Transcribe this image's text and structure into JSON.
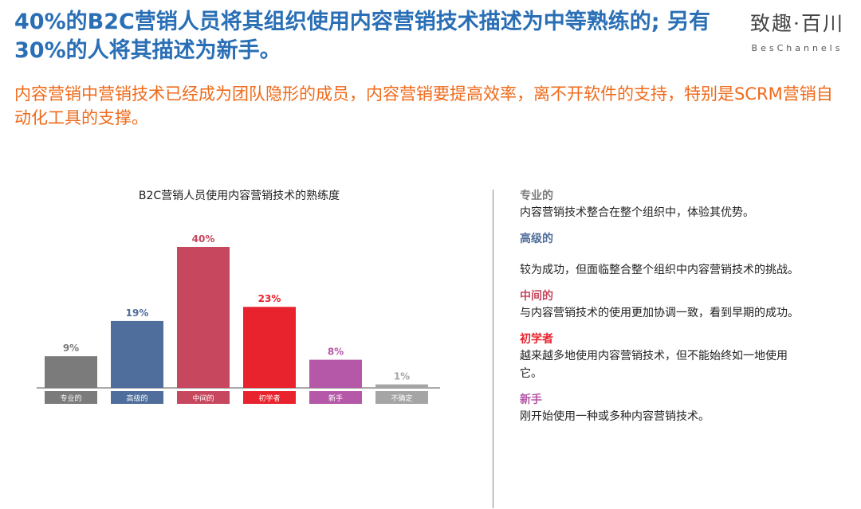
{
  "header": {
    "headline": "40%的B2C营销人员将其组织使用内容营销技术描述为中等熟练的; 另有30%的人将其描述为新手。",
    "subtitle": "内容营销中营销技术已经成为团队隐形的成员，内容营销要提高效率，离不开软件的支持，特别是SCRM营销自动化工具的支撑。"
  },
  "logo": {
    "cn": "致趣·百川",
    "en": "BesChannels"
  },
  "chart_data": {
    "type": "bar",
    "title": "B2C营销人员使用内容营销技术的熟练度",
    "categories": [
      "专业的",
      "高级的",
      "中间的",
      "初学者",
      "新手",
      "不确定"
    ],
    "values": [
      9,
      19,
      40,
      23,
      8,
      1
    ],
    "value_labels": [
      "9%",
      "19%",
      "40%",
      "23%",
      "8%",
      "1%"
    ],
    "colors": [
      "#7b7b7b",
      "#4f6e9b",
      "#c7475e",
      "#e8232d",
      "#b558a8",
      "#a5a5a5"
    ],
    "ylim": [
      0,
      40
    ],
    "grid": false
  },
  "legend": [
    {
      "term": "专业的",
      "color": "#7b7b7b",
      "desc": "内容营销技术整合在整个组织中，体验其优势。"
    },
    {
      "term": "高级的",
      "color": "#4f6e9b",
      "desc": "较为成功，但面临整合整个组织中内容营销技术的挑战。"
    },
    {
      "term": "中间的",
      "color": "#c7475e",
      "desc": "与内容营销技术的使用更加协调一致，看到早期的成功。"
    },
    {
      "term": "初学者",
      "color": "#e8232d",
      "desc": "越来越多地使用内容营销技术，但不能始终如一地使用它。"
    },
    {
      "term": "新手",
      "color": "#b558a8",
      "desc": "刚开始使用一种或多种内容营销技术。"
    }
  ]
}
